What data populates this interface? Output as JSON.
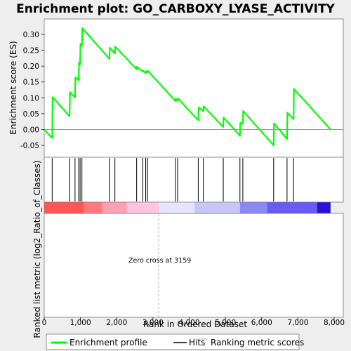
{
  "chart_data": {
    "type": "line",
    "title": "Enrichment plot: GO_CARBOXY_LYASE_ACTIVITY",
    "ylabel": "Enrichment score (ES)",
    "ylabel_bottom": "Ranked list metric (log2_Ratio_of_Classes)",
    "xlabel": "Rank in Ordered Dataset",
    "xlim": [
      0,
      8000
    ],
    "ylim": [
      -0.07,
      0.34
    ],
    "x_ticks": [
      0,
      1000,
      2000,
      3000,
      4000,
      5000,
      6000,
      7000,
      8000
    ],
    "x_tick_labels": [
      "0",
      "1,000",
      "2,000",
      "3,000",
      "4,000",
      "5,000",
      "6,000",
      "7,000",
      "8,000"
    ],
    "y_ticks": [
      -0.05,
      0.0,
      0.05,
      0.1,
      0.15,
      0.2,
      0.25,
      0.3
    ],
    "y_tick_labels": [
      "-0.05",
      "0.00",
      "0.05",
      "0.10",
      "0.15",
      "0.20",
      "0.25",
      "0.30"
    ],
    "series": [
      {
        "name": "Enrichment profile",
        "color": "#00ff00",
        "x": [
          0,
          220,
          230,
          700,
          710,
          850,
          860,
          950,
          960,
          990,
          1000,
          1040,
          1050,
          1800,
          1810,
          1950,
          1960,
          2550,
          2560,
          2720,
          2730,
          2800,
          2810,
          2850,
          2860,
          3620,
          3630,
          3680,
          3690,
          4250,
          4260,
          4390,
          4400,
          4940,
          4950,
          5400,
          5410,
          5480,
          5490,
          6330,
          6340,
          6700,
          6710,
          6880,
          6890,
          7900
        ],
        "values": [
          0.0,
          -0.027,
          0.102,
          0.042,
          0.118,
          0.101,
          0.165,
          0.155,
          0.212,
          0.205,
          0.27,
          0.265,
          0.32,
          0.223,
          0.258,
          0.24,
          0.262,
          0.19,
          0.198,
          0.183,
          0.186,
          0.178,
          0.184,
          0.18,
          0.185,
          0.09,
          0.097,
          0.09,
          0.098,
          0.029,
          0.07,
          0.057,
          0.073,
          0.008,
          0.038,
          -0.02,
          0.021,
          0.018,
          0.058,
          -0.05,
          0.019,
          -0.03,
          0.053,
          0.033,
          0.128,
          0.0
        ]
      }
    ],
    "hits": [
      220,
      700,
      850,
      950,
      990,
      1040,
      1800,
      1950,
      2550,
      2720,
      2800,
      2850,
      3620,
      3680,
      4250,
      4390,
      4940,
      5400,
      5480,
      6330,
      6700,
      6880
    ],
    "zero_cross_rank": 3159,
    "annotation": "Zero cross at 3159",
    "legend": [
      {
        "label": "Enrichment profile",
        "kind": "line",
        "color": "#00ff00"
      },
      {
        "label": "Hits",
        "kind": "line",
        "color": "#000000"
      },
      {
        "label": "Ranking metric scores",
        "kind": "line",
        "color": "#bbbbbb"
      }
    ],
    "legend_position": "bottom",
    "grid": false,
    "heatmap_bands": [
      {
        "from": 0,
        "to": 1100,
        "color": "#ff5555"
      },
      {
        "from": 1100,
        "to": 1600,
        "color": "#ff7b7b"
      },
      {
        "from": 1600,
        "to": 2280,
        "color": "#ff9fb3"
      },
      {
        "from": 2280,
        "to": 3159,
        "color": "#ffc6e4"
      },
      {
        "from": 3159,
        "to": 4150,
        "color": "#e8e3fb"
      },
      {
        "from": 4150,
        "to": 5400,
        "color": "#c8c5f7"
      },
      {
        "from": 5400,
        "to": 6150,
        "color": "#8a88f5"
      },
      {
        "from": 6150,
        "to": 7530,
        "color": "#6a5cf0"
      },
      {
        "from": 7530,
        "to": 7900,
        "color": "#2a10d8"
      }
    ]
  }
}
